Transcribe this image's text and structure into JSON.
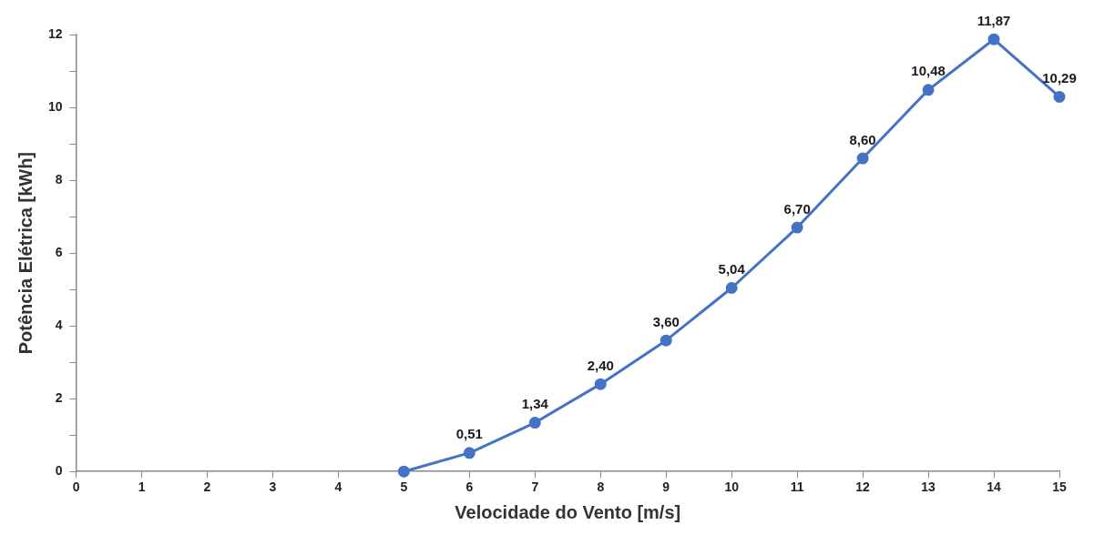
{
  "chart_data": {
    "type": "line",
    "xlabel": "Velocidade do Vento [m/s]",
    "ylabel": "Potência Elétrica [kWh]",
    "x": [
      5,
      6,
      7,
      8,
      9,
      10,
      11,
      12,
      13,
      14,
      15
    ],
    "series": [
      {
        "color": "#4472c4",
        "values": [
          0,
          0.51,
          1.34,
          2.4,
          3.6,
          5.04,
          6.7,
          8.6,
          10.48,
          11.87,
          10.29
        ],
        "value_labels": [
          null,
          "0,51",
          "1,34",
          "2,40",
          "3,60",
          "5,04",
          "6,70",
          "8,60",
          "10,48",
          "11,87",
          "10,29"
        ]
      }
    ],
    "xlim": [
      0,
      15
    ],
    "xticks": [
      0,
      1,
      2,
      3,
      4,
      5,
      6,
      7,
      8,
      9,
      10,
      11,
      12,
      13,
      14,
      15
    ],
    "ylim": [
      0,
      12
    ],
    "yticks": [
      0,
      {
        "value": 1,
        "label": null
      },
      2,
      {
        "value": 3,
        "label": null
      },
      4,
      {
        "value": 5,
        "label": null
      },
      6,
      {
        "value": 7,
        "label": null
      },
      8,
      {
        "value": 9,
        "label": null
      },
      10,
      {
        "value": 11,
        "label": null
      },
      12
    ],
    "grid": false,
    "legend": false,
    "marker": "circle",
    "line_style": "solid"
  }
}
